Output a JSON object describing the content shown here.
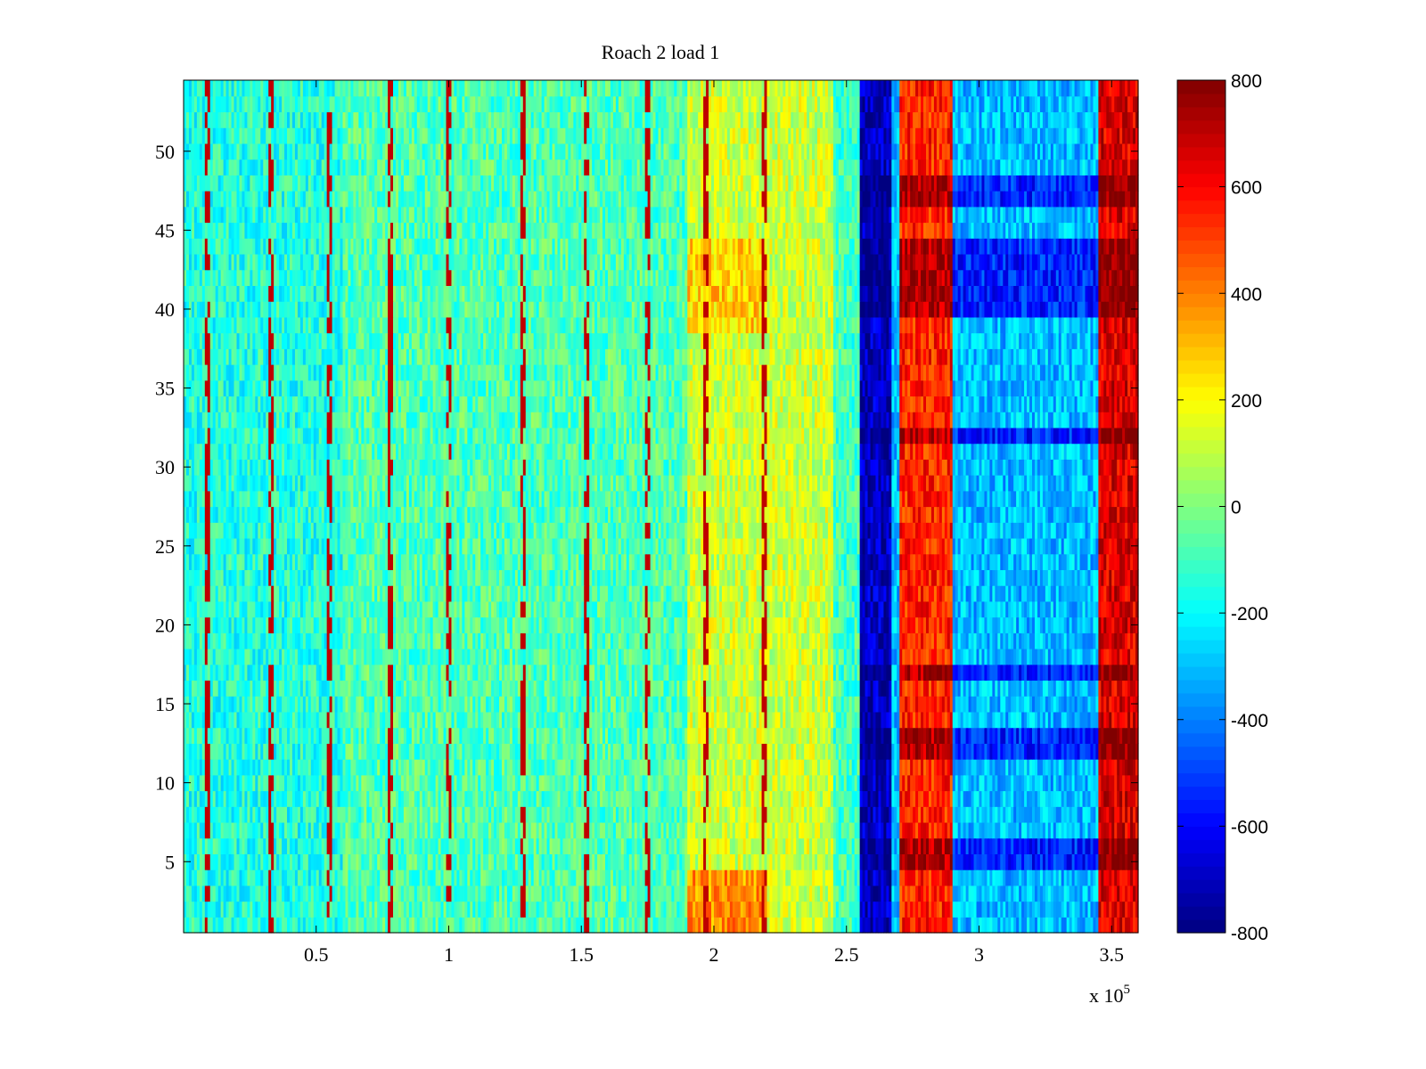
{
  "chart_data": {
    "type": "heatmap",
    "title": "Roach 2 load 1",
    "colormap": "jet",
    "xlabel": "",
    "ylabel": "",
    "x_multiplier_label": "x 10",
    "x_multiplier_exponent": "5",
    "xlim": [
      0,
      3.6
    ],
    "ylim": [
      0.5,
      54.5
    ],
    "x_ticks": [
      0.5,
      1,
      1.5,
      2,
      2.5,
      3,
      3.5
    ],
    "x_tick_labels": [
      "0.5",
      "1",
      "1.5",
      "2",
      "2.5",
      "3",
      "3.5"
    ],
    "y_ticks": [
      5,
      10,
      15,
      20,
      25,
      30,
      35,
      40,
      45,
      50
    ],
    "y_tick_labels": [
      "5",
      "10",
      "15",
      "20",
      "25",
      "30",
      "35",
      "40",
      "45",
      "50"
    ],
    "rows": 54,
    "colorbar": {
      "range": [
        -800,
        800
      ],
      "ticks": [
        -800,
        -600,
        -400,
        -200,
        0,
        200,
        400,
        600,
        800
      ],
      "tick_labels": [
        "-800",
        "-600",
        "-400",
        "-200",
        "0",
        "200",
        "400",
        "600",
        "800"
      ]
    },
    "column_bands": [
      {
        "x_start": 0.0,
        "x_end": 0.6,
        "mean_value": -150,
        "description": "cyan/green background"
      },
      {
        "x_start": 0.6,
        "x_end": 1.9,
        "mean_value": -80,
        "description": "green"
      },
      {
        "x_start": 1.9,
        "x_end": 2.45,
        "mean_value": 120,
        "description": "yellow, orange at bottom"
      },
      {
        "x_start": 2.45,
        "x_end": 2.55,
        "mean_value": -100,
        "description": "green/cyan"
      },
      {
        "x_start": 2.55,
        "x_end": 2.67,
        "mean_value": -700,
        "description": "dark blue band"
      },
      {
        "x_start": 2.67,
        "x_end": 2.7,
        "mean_value": -300,
        "description": "cyan edge"
      },
      {
        "x_start": 2.7,
        "x_end": 2.9,
        "mean_value": 550,
        "description": "red/orange band"
      },
      {
        "x_start": 2.9,
        "x_end": 3.45,
        "mean_value": -300,
        "description": "cyan/blue region"
      },
      {
        "x_start": 3.45,
        "x_end": 3.6,
        "mean_value": 650,
        "description": "dark red band"
      }
    ],
    "vertical_streaks_x": [
      0.09,
      0.33,
      0.55,
      0.78,
      1.0,
      1.28,
      1.52,
      1.75,
      1.97,
      2.19
    ],
    "dark_rows": [
      5,
      6,
      12,
      13,
      17,
      32,
      40,
      41,
      42,
      43,
      44,
      47,
      48
    ]
  },
  "colors": {
    "jet_stops": [
      "#00007f",
      "#0000ff",
      "#007fff",
      "#00ffff",
      "#7fff7f",
      "#ffff00",
      "#ff7f00",
      "#ff0000",
      "#7f0000"
    ]
  }
}
